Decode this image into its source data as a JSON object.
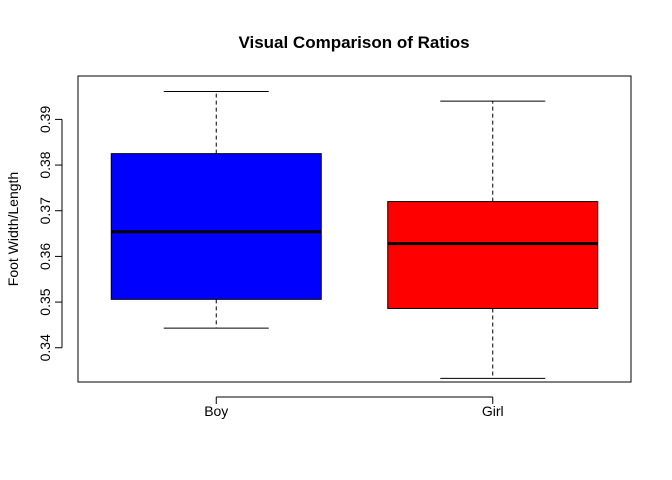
{
  "chart_data": {
    "type": "boxplot",
    "title": "Visual Comparison of Ratios",
    "xlabel": "",
    "ylabel": "Foot Width/Length",
    "ylim": [
      0.3325,
      0.3995
    ],
    "yticks": [
      0.34,
      0.35,
      0.36,
      0.37,
      0.38,
      0.39
    ],
    "ytick_labels": [
      "0.34",
      "0.35",
      "0.36",
      "0.37",
      "0.38",
      "0.39"
    ],
    "grid": false,
    "categories": [
      "Boy",
      "Girl"
    ],
    "boxes": [
      {
        "category": "Boy",
        "min": 0.3443,
        "q1": 0.3506,
        "median": 0.3654,
        "q3": 0.3825,
        "max": 0.3961,
        "color": "#0000ff"
      },
      {
        "category": "Girl",
        "min": 0.3333,
        "q1": 0.3486,
        "median": 0.3628,
        "q3": 0.372,
        "max": 0.394,
        "color": "#ff0000"
      }
    ]
  }
}
